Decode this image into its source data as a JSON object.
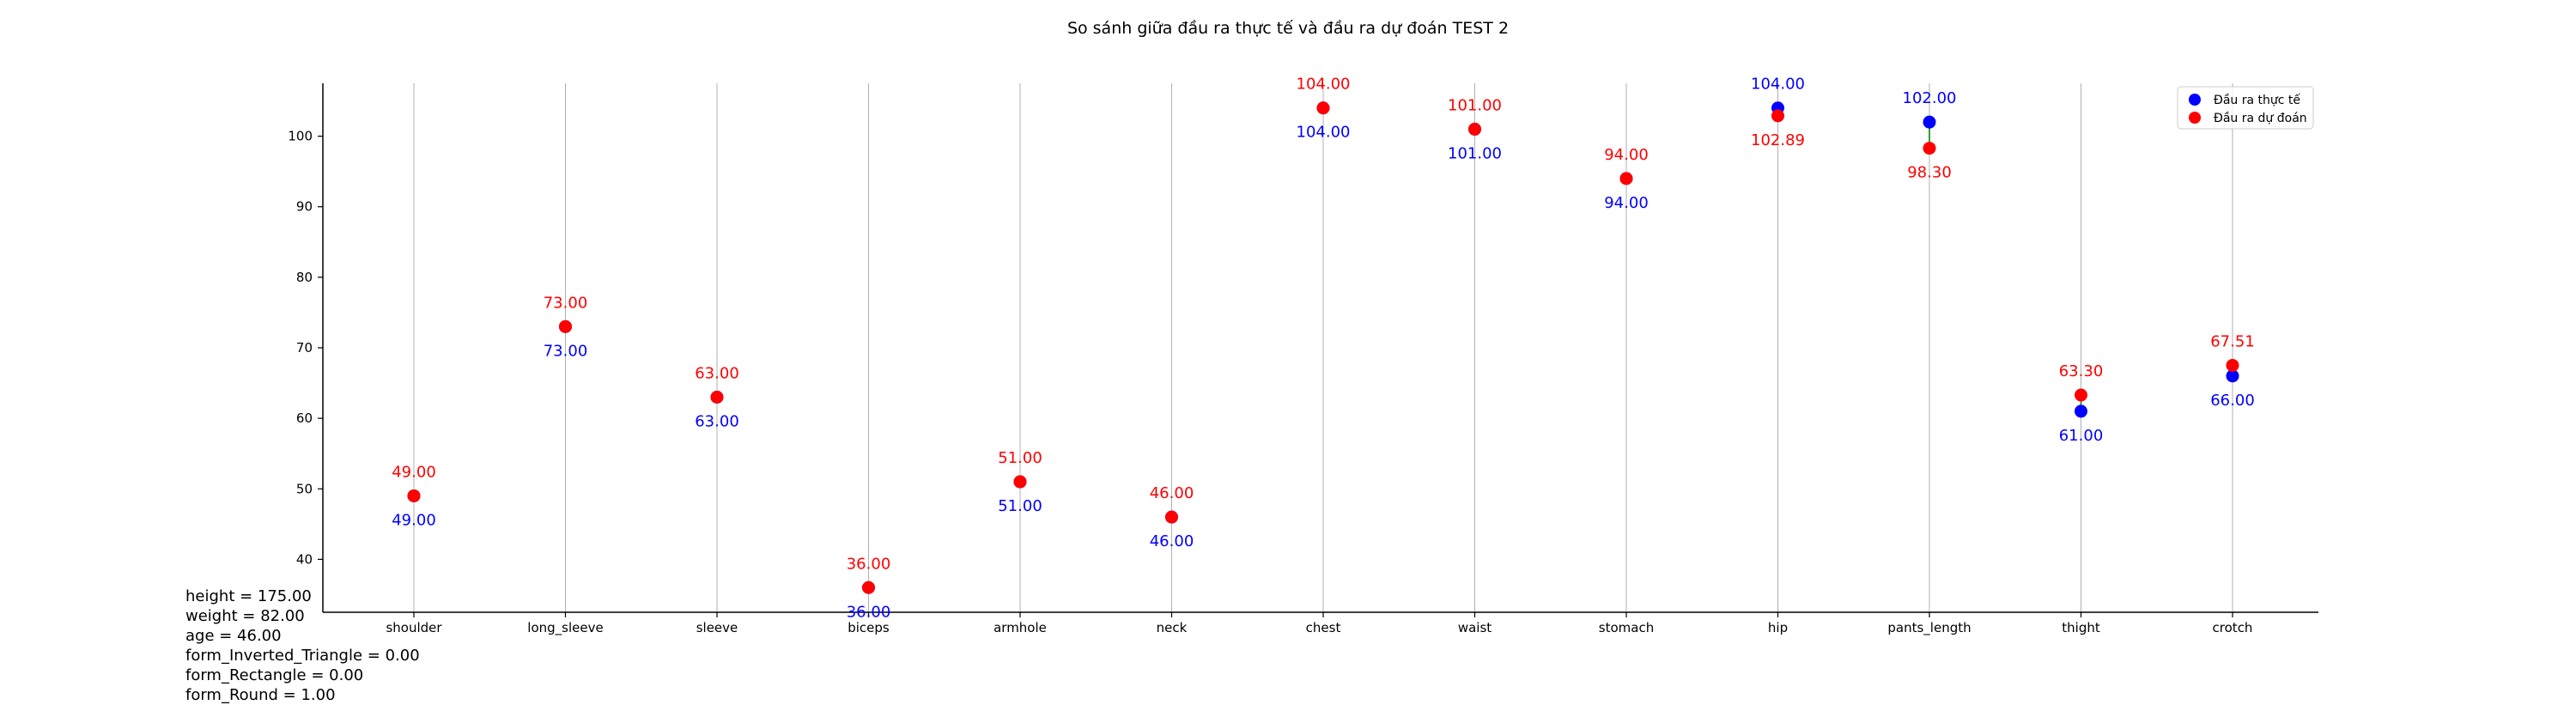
{
  "chart_data": {
    "type": "scatter",
    "title": "So sánh giữa đầu ra thực tế và đầu ra dự đoán TEST 2",
    "categories": [
      "shoulder",
      "long_sleeve",
      "sleeve",
      "biceps",
      "armhole",
      "neck",
      "chest",
      "waist",
      "stomach",
      "hip",
      "pants_length",
      "thight",
      "crotch"
    ],
    "series": [
      {
        "name": "Đầu ra thực tế",
        "color": "#0000ff",
        "values": [
          49.0,
          73.0,
          63.0,
          36.0,
          51.0,
          46.0,
          104.0,
          101.0,
          94.0,
          104.0,
          102.0,
          61.0,
          66.0
        ],
        "labels": [
          "49.00",
          "73.00",
          "63.00",
          "36.00",
          "51.00",
          "46.00",
          "104.00",
          "101.00",
          "94.00",
          "104.00",
          "102.00",
          "61.00",
          "66.00"
        ]
      },
      {
        "name": "Đầu ra dự đoán",
        "color": "#ff0000",
        "values": [
          49.0,
          73.0,
          63.0,
          36.0,
          51.0,
          46.0,
          104.0,
          101.0,
          94.0,
          102.89,
          98.3,
          63.3,
          67.51
        ],
        "labels": [
          "49.00",
          "73.00",
          "63.00",
          "36.00",
          "51.00",
          "46.00",
          "104.00",
          "101.00",
          "94.00",
          "102.89",
          "98.30",
          "63.30",
          "67.51"
        ]
      }
    ],
    "connector_color": "#2ca02c",
    "grid_color": "#b0b0b0",
    "ylim": [
      32.5,
      107.5
    ],
    "yticks": [
      40,
      50,
      60,
      70,
      80,
      90,
      100
    ],
    "ytick_labels": [
      "40",
      "50",
      "60",
      "70",
      "80",
      "90",
      "100"
    ],
    "grid": "vertical",
    "legend_position": "top-right"
  },
  "notes": [
    "height = 175.00",
    "weight = 82.00",
    "age = 46.00",
    "form_Inverted_Triangle = 0.00",
    "form_Rectangle = 0.00",
    "form_Round = 1.00"
  ]
}
